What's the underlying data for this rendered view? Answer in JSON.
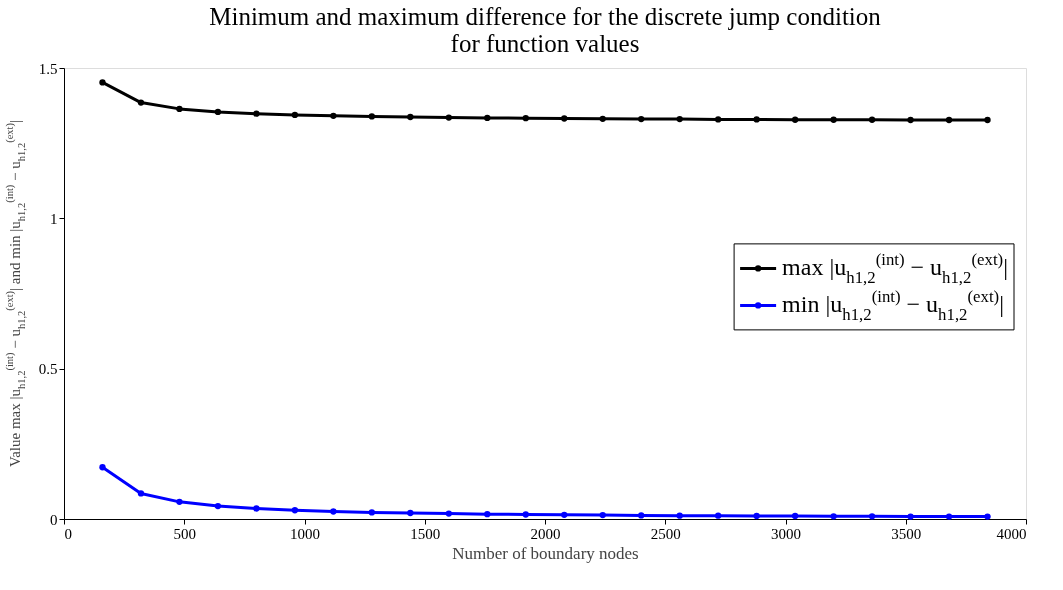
{
  "chart_data": {
    "type": "line",
    "title": "Minimum and maximum difference for the discrete jump condition\nfor function values",
    "xlabel": "Number of boundary nodes",
    "ylabel": "Value max |u$_{h1,2}$$^{(int)}$ − u$_{h1,2}$$^{(ext)}$| and min |u$_{h1,2}$$^{(int)}$ − u$_{h1,2}$$^{(ext)}$|",
    "x": [
      160,
      320,
      480,
      640,
      800,
      960,
      1120,
      1280,
      1440,
      1600,
      1760,
      1920,
      2080,
      2240,
      2400,
      2560,
      2720,
      2880,
      3040,
      3200,
      3360,
      3520,
      3680,
      3840
    ],
    "series": [
      {
        "name": "max |u$_{h1,2}$$^{(int)}$ − u$_{h1,2}$$^{(ext)}$|",
        "color": "#000000",
        "values": [
          1.452,
          1.385,
          1.364,
          1.354,
          1.348,
          1.344,
          1.341,
          1.339,
          1.337,
          1.335,
          1.334,
          1.333,
          1.332,
          1.331,
          1.33,
          1.33,
          1.329,
          1.329,
          1.328,
          1.328,
          1.328,
          1.327,
          1.327,
          1.327
        ]
      },
      {
        "name": "min |u$_{h1,2}$$^{(int)}$ − u$_{h1,2}$$^{(ext)}$|",
        "color": "#0000ff",
        "values": [
          0.172,
          0.085,
          0.057,
          0.043,
          0.035,
          0.029,
          0.025,
          0.022,
          0.02,
          0.018,
          0.016,
          0.015,
          0.014,
          0.013,
          0.012,
          0.011,
          0.011,
          0.01,
          0.01,
          0.009,
          0.009,
          0.008,
          0.008,
          0.008
        ]
      }
    ],
    "xlim": [
      0,
      4000
    ],
    "xticks": [
      0,
      500,
      1000,
      1500,
      2000,
      2500,
      3000,
      3500,
      4000
    ],
    "ylim": [
      0,
      1.5
    ],
    "yticks": [
      0,
      0.5,
      1,
      1.5
    ],
    "grid": false,
    "legend": "right",
    "marker": "circle",
    "line_style": "solid"
  }
}
